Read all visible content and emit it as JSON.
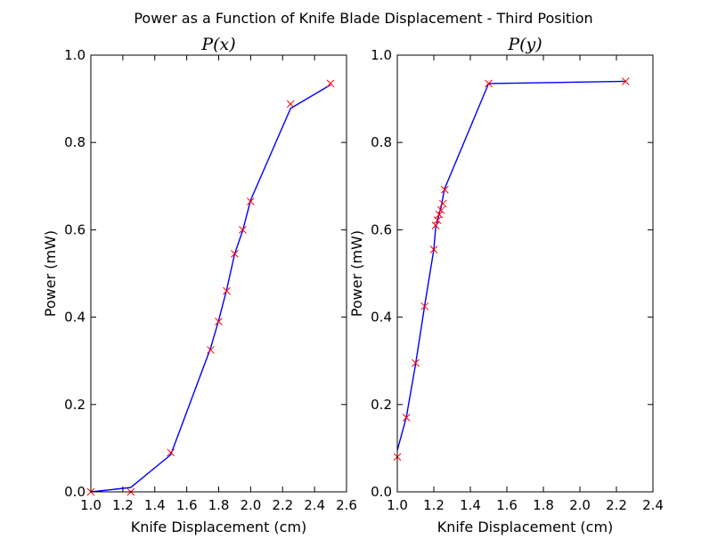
{
  "figure": {
    "suptitle": "Power as a Function of Knife Blade Displacement - Third Position"
  },
  "chart_data": [
    {
      "type": "line",
      "title": "P(x)",
      "xlabel": "Knife Displacement (cm)",
      "ylabel": "Power (mW)",
      "xlim": [
        1.0,
        2.6
      ],
      "ylim": [
        0.0,
        1.0
      ],
      "xticks": [
        "1.0",
        "1.2",
        "1.4",
        "1.6",
        "1.8",
        "2.0",
        "2.2",
        "2.4",
        "2.6"
      ],
      "yticks": [
        "0.0",
        "0.2",
        "0.4",
        "0.6",
        "0.8",
        "1.0"
      ],
      "grid": false,
      "line_color": "#0000ff",
      "marker_color": "#ff0000",
      "line": {
        "x": [
          1.0,
          1.25,
          1.5,
          1.75,
          1.8,
          1.85,
          1.9,
          1.95,
          2.0,
          2.25,
          2.5
        ],
        "y": [
          0.0,
          0.01,
          0.085,
          0.33,
          0.393,
          0.463,
          0.545,
          0.598,
          0.668,
          0.878,
          0.932
        ]
      },
      "markers": {
        "x": [
          1.0,
          1.25,
          1.5,
          1.75,
          1.8,
          1.85,
          1.9,
          1.95,
          2.0,
          2.25,
          2.5
        ],
        "y": [
          0.0,
          0.0,
          0.09,
          0.325,
          0.39,
          0.46,
          0.545,
          0.6,
          0.665,
          0.888,
          0.935
        ]
      }
    },
    {
      "type": "line",
      "title": "P(y)",
      "xlabel": "Knife Displacement (cm)",
      "ylabel": "Power (mW)",
      "xlim": [
        1.0,
        2.4
      ],
      "ylim": [
        0.0,
        1.0
      ],
      "xticks": [
        "1.0",
        "1.2",
        "1.4",
        "1.6",
        "1.8",
        "2.0",
        "2.2",
        "2.4"
      ],
      "yticks": [
        "0.0",
        "0.2",
        "0.4",
        "0.6",
        "0.8",
        "1.0"
      ],
      "grid": false,
      "line_color": "#0000ff",
      "marker_color": "#ff0000",
      "line": {
        "x": [
          1.0,
          1.05,
          1.1,
          1.15,
          1.2,
          1.21,
          1.22,
          1.23,
          1.24,
          1.25,
          1.26,
          1.5,
          2.25
        ],
        "y": [
          0.095,
          0.172,
          0.292,
          0.427,
          0.555,
          0.605,
          0.62,
          0.638,
          0.652,
          0.675,
          0.695,
          0.935,
          0.94
        ]
      },
      "markers": {
        "x": [
          1.0,
          1.05,
          1.1,
          1.15,
          1.2,
          1.21,
          1.22,
          1.23,
          1.24,
          1.25,
          1.26,
          1.5,
          2.25
        ],
        "y": [
          0.08,
          0.17,
          0.295,
          0.425,
          0.555,
          0.61,
          0.622,
          0.635,
          0.645,
          0.66,
          0.692,
          0.935,
          0.94
        ]
      }
    }
  ]
}
